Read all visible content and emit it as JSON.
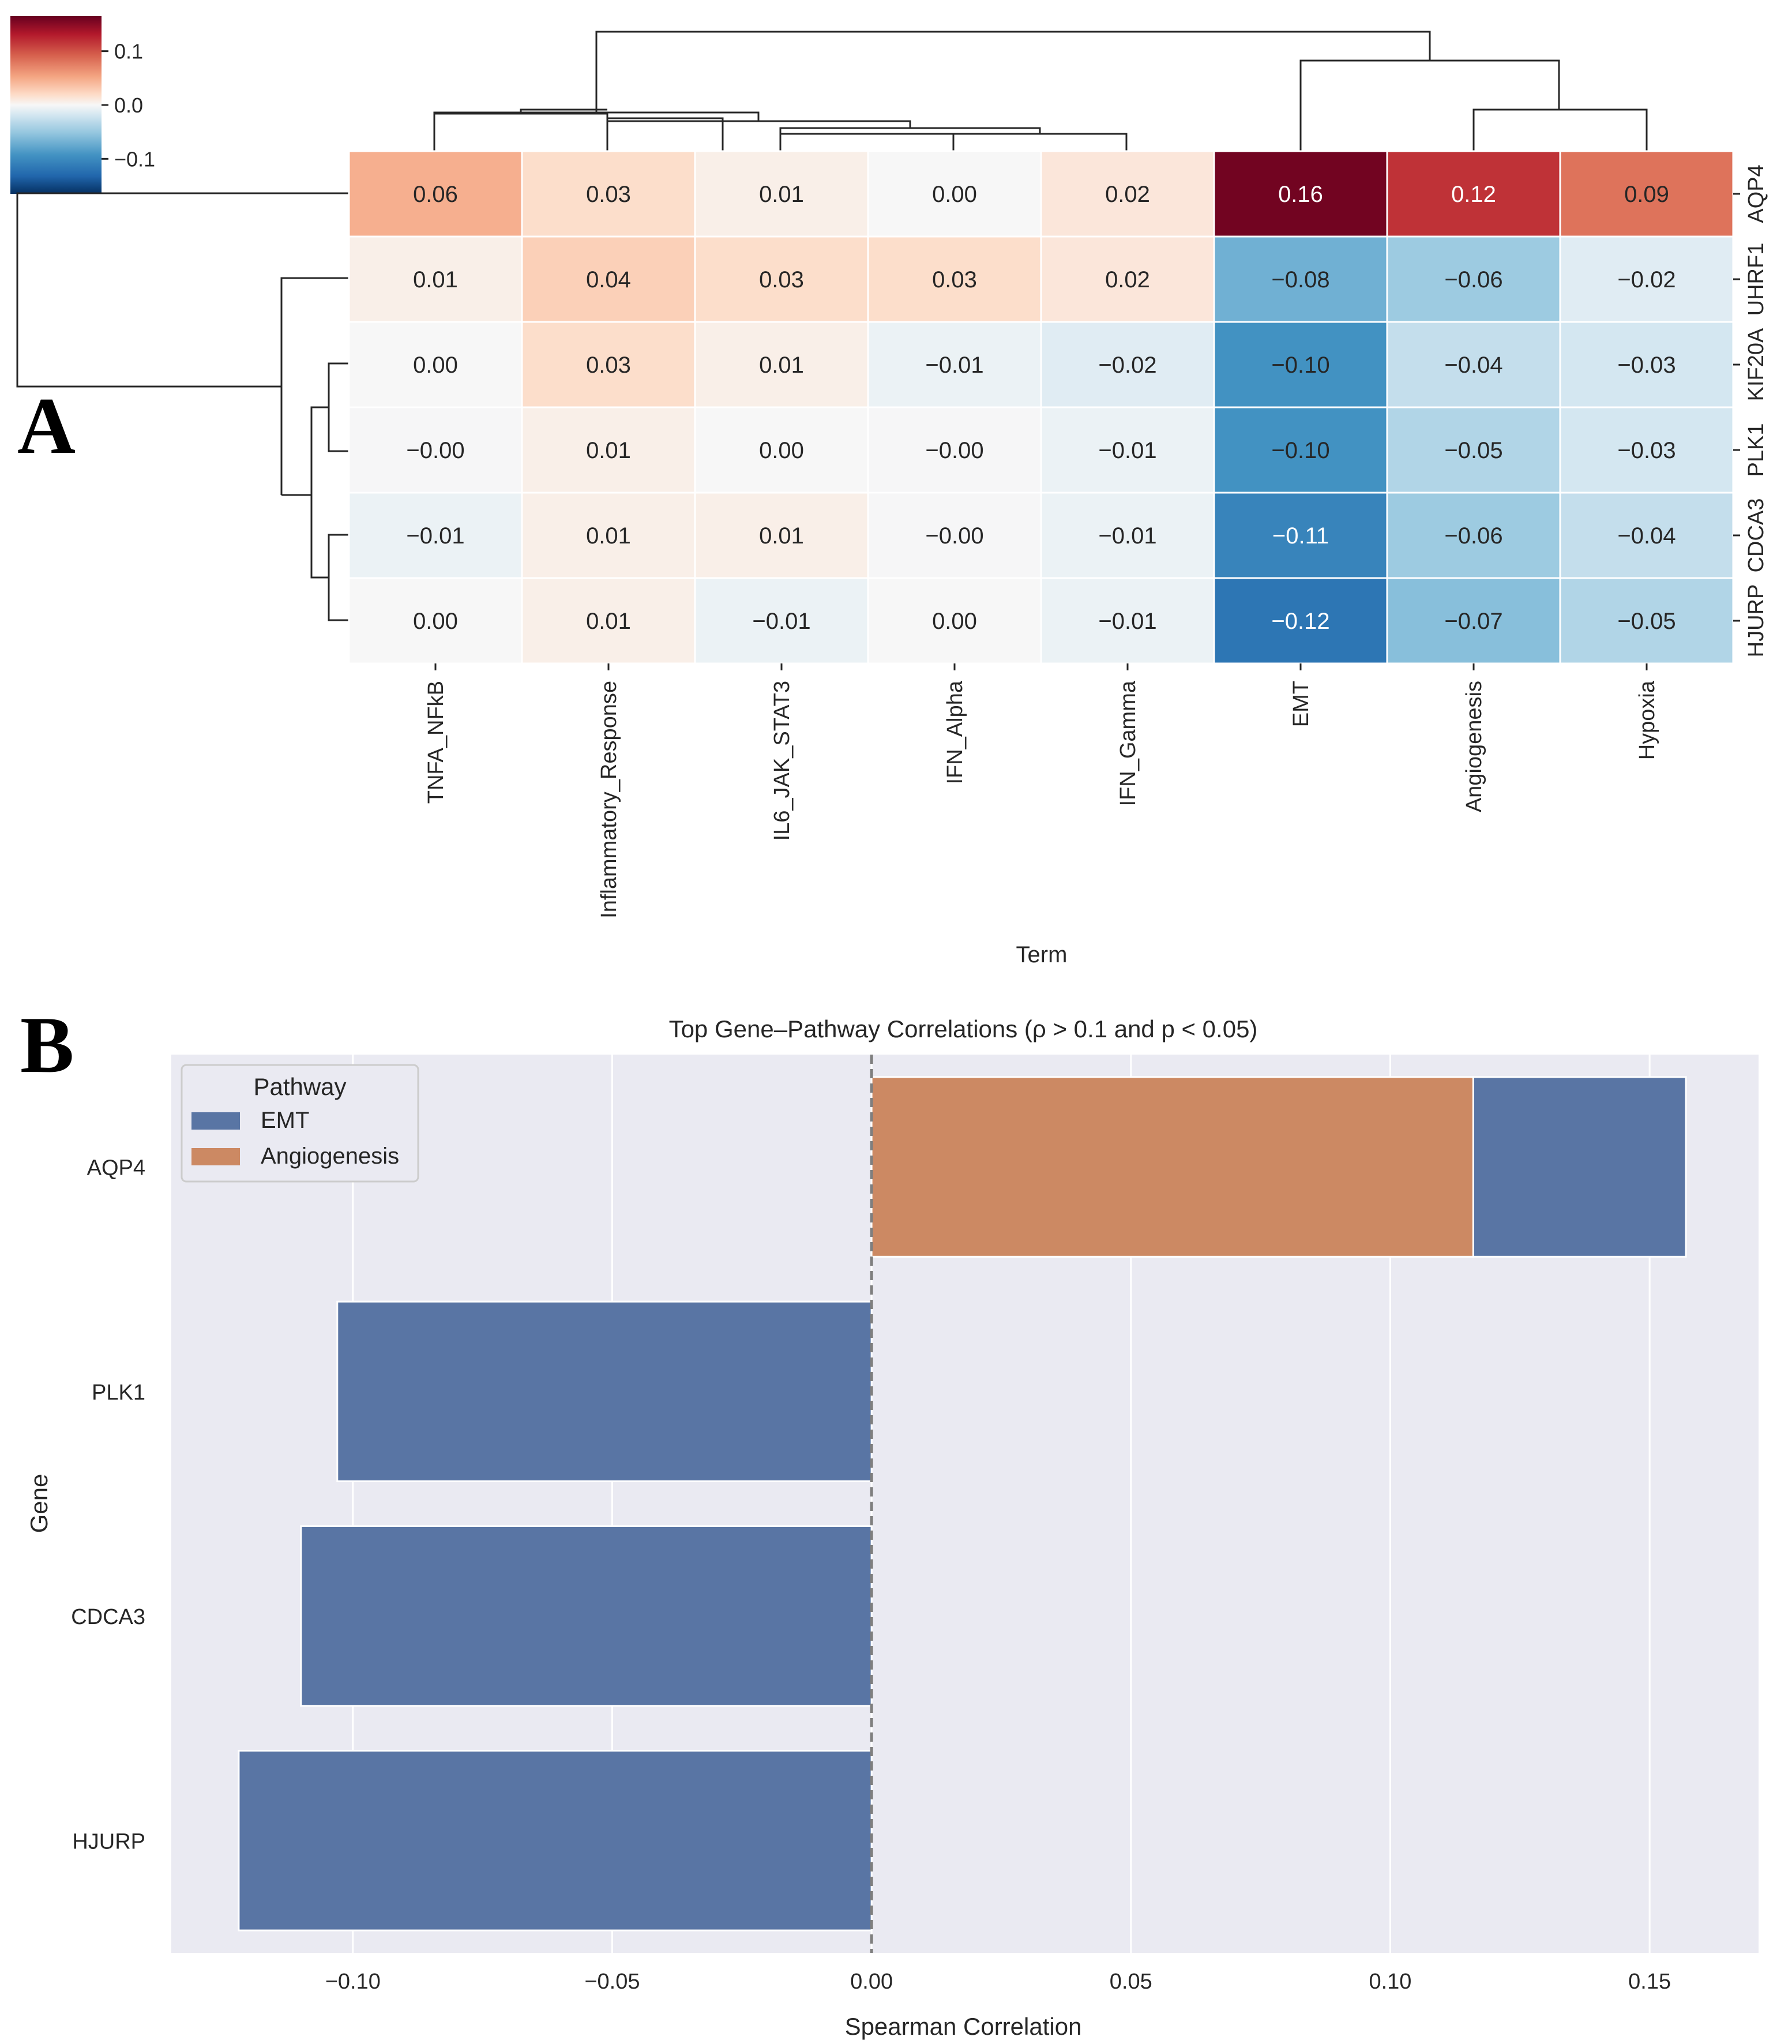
{
  "panel_a": {
    "letter": "A",
    "colorbar_ticks": [
      {
        "value": 0.1,
        "label": "0.1"
      },
      {
        "value": 0.0,
        "label": "0.0"
      },
      {
        "value": -0.1,
        "label": "−0.1"
      }
    ],
    "colorbar_range": [
      -0.165,
      0.165
    ]
  },
  "panel_b": {
    "letter": "B"
  },
  "colors": {
    "emt": "#5975a4",
    "angiogenesis": "#cc8963",
    "plot_background": "#eaeaf2",
    "grid": "#ffffff",
    "zero_line": "#7f7f7f",
    "text": "#262626",
    "heat_low": "#053061",
    "heat_high": "#67001f"
  },
  "chart_data": [
    {
      "type": "heatmap",
      "title": "",
      "xlabel": "Term",
      "ylabel": "",
      "columns": [
        "TNFA_NFkB",
        "Inflammatory_Response",
        "IL6_JAK_STAT3",
        "IFN_Alpha",
        "IFN_Gamma",
        "EMT",
        "Angiogenesis",
        "Hypoxia"
      ],
      "rows": [
        "AQP4",
        "UHRF1",
        "KIF20A",
        "PLK1",
        "CDCA3",
        "HJURP"
      ],
      "values": [
        [
          0.06,
          0.03,
          0.01,
          0.0,
          0.02,
          0.16,
          0.12,
          0.09
        ],
        [
          0.01,
          0.04,
          0.03,
          0.03,
          0.02,
          -0.08,
          -0.06,
          -0.02
        ],
        [
          0.0,
          0.03,
          0.01,
          -0.01,
          -0.02,
          -0.1,
          -0.04,
          -0.03
        ],
        [
          -0.001,
          0.01,
          0.0,
          -0.001,
          -0.01,
          -0.1,
          -0.05,
          -0.03
        ],
        [
          -0.01,
          0.01,
          0.01,
          -0.001,
          -0.01,
          -0.11,
          -0.06,
          -0.04
        ],
        [
          0.0,
          0.01,
          -0.01,
          0.0,
          -0.01,
          -0.12,
          -0.07,
          -0.05
        ]
      ],
      "labels": [
        [
          "0.06",
          "0.03",
          "0.01",
          "0.00",
          "0.02",
          "0.16",
          "0.12",
          "0.09"
        ],
        [
          "0.01",
          "0.04",
          "0.03",
          "0.03",
          "0.02",
          "−0.08",
          "−0.06",
          "−0.02"
        ],
        [
          "0.00",
          "0.03",
          "0.01",
          "−0.01",
          "−0.02",
          "−0.10",
          "−0.04",
          "−0.03"
        ],
        [
          "−0.00",
          "0.01",
          "0.00",
          "−0.00",
          "−0.01",
          "−0.10",
          "−0.05",
          "−0.03"
        ],
        [
          "−0.01",
          "0.01",
          "0.01",
          "−0.00",
          "−0.01",
          "−0.11",
          "−0.06",
          "−0.04"
        ],
        [
          "0.00",
          "0.01",
          "−0.01",
          "0.00",
          "−0.01",
          "−0.12",
          "−0.07",
          "−0.05"
        ]
      ],
      "colormap": "RdBu_r",
      "vlim": [
        -0.165,
        0.165
      ]
    },
    {
      "type": "bar",
      "orientation": "horizontal",
      "title": "Top Gene–Pathway Correlations (ρ > 0.1 and p < 0.05)",
      "xlabel": "Spearman Correlation",
      "ylabel": "Gene",
      "categories": [
        "AQP4",
        "PLK1",
        "CDCA3",
        "HJURP"
      ],
      "series": [
        {
          "name": "EMT",
          "values": [
            0.157,
            -0.103,
            -0.11,
            -0.122
          ]
        },
        {
          "name": "Angiogenesis",
          "values": [
            0.116,
            null,
            null,
            null
          ]
        }
      ],
      "xlim": [
        -0.135,
        0.171
      ],
      "xticks": [
        -0.1,
        -0.05,
        0.0,
        0.05,
        0.1,
        0.15
      ],
      "xtick_labels": [
        "−0.10",
        "−0.05",
        "0.00",
        "0.05",
        "0.10",
        "0.15"
      ],
      "legend_title": "Pathway",
      "legend": [
        "EMT",
        "Angiogenesis"
      ],
      "legend_position": "top-left",
      "reference_line": 0.0,
      "grid": true
    }
  ]
}
